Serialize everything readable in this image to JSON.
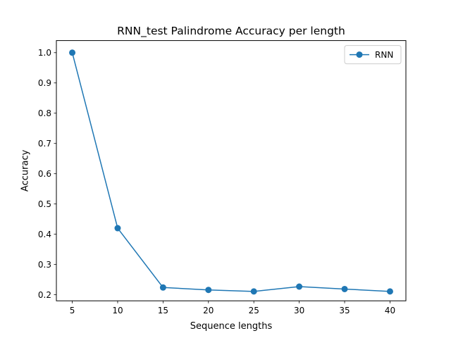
{
  "chart_data": {
    "type": "line",
    "title": "RNN_test Palindrome Accuracy per length",
    "xlabel": "Sequence lengths",
    "ylabel": "Accuracy",
    "x": [
      5,
      10,
      15,
      20,
      25,
      30,
      35,
      40
    ],
    "xticks": [
      "5",
      "10",
      "15",
      "20",
      "25",
      "30",
      "35",
      "40"
    ],
    "yticks": [
      "0.2",
      "0.3",
      "0.4",
      "0.5",
      "0.6",
      "0.7",
      "0.8",
      "0.9",
      "1.0"
    ],
    "xlim": [
      3.25,
      41.75
    ],
    "ylim": [
      0.18,
      1.04
    ],
    "grid": false,
    "legend_position": "upper right",
    "series": [
      {
        "name": "RNN",
        "color": "#1f77b4",
        "marker": "circle",
        "values": [
          1.0,
          0.42,
          0.224,
          0.216,
          0.211,
          0.227,
          0.219,
          0.211
        ]
      }
    ]
  }
}
